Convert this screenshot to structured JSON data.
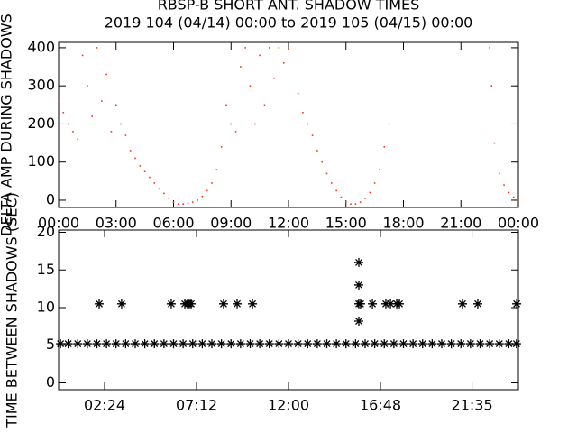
{
  "chart_data": [
    {
      "type": "scatter",
      "marker": "dot",
      "color": "#f03a1e",
      "title": "RBSP-B SHORT ANT. SHADOW TIMES",
      "subtitle": "2019 104 (04/14) 00:00 to 2019 105 (04/15) 00:00",
      "ylabel": "DELTA AMP DURING SHADOWS",
      "xlim": [
        0,
        24
      ],
      "ylim": [
        -19,
        414
      ],
      "xticks": [
        {
          "value": 0,
          "label": "00:00"
        },
        {
          "value": 3,
          "label": "03:00"
        },
        {
          "value": 6,
          "label": "06:00"
        },
        {
          "value": 9,
          "label": "09:00"
        },
        {
          "value": 12,
          "label": "12:00"
        },
        {
          "value": 15,
          "label": "15:00"
        },
        {
          "value": 18,
          "label": "18:00"
        },
        {
          "value": 21,
          "label": "21:00"
        },
        {
          "value": 24,
          "label": "00:00"
        }
      ],
      "yticks": [
        0,
        100,
        200,
        300,
        400
      ],
      "x": [
        0,
        0.25,
        0.5,
        0.75,
        1.0,
        1.25,
        1.5,
        1.75,
        2.0,
        2.25,
        2.5,
        2.75,
        3.0,
        3.25,
        3.5,
        3.75,
        4.0,
        4.25,
        4.5,
        4.75,
        5.0,
        5.25,
        5.5,
        5.75,
        6.0,
        6.25,
        6.5,
        6.75,
        7.0,
        7.25,
        7.5,
        7.75,
        8.0,
        8.25,
        8.5,
        8.75,
        9.0,
        9.25,
        9.5,
        9.75,
        10.0,
        10.25,
        10.5,
        10.75,
        11.0,
        11.25,
        11.5,
        11.75,
        12.0,
        12.5,
        12.75,
        13.0,
        13.25,
        13.5,
        13.75,
        14.0,
        14.25,
        14.5,
        14.75,
        15.0,
        15.25,
        15.5,
        15.75,
        16.0,
        16.25,
        16.5,
        16.75,
        17.0,
        17.25,
        22.5,
        22.6,
        22.75,
        23.0,
        23.25,
        23.5,
        23.75,
        24.0
      ],
      "values": [
        260,
        230,
        200,
        180,
        160,
        380,
        300,
        220,
        400,
        260,
        330,
        180,
        250,
        200,
        170,
        130,
        110,
        90,
        75,
        60,
        45,
        30,
        18,
        5,
        -5,
        -10,
        -10,
        -8,
        -5,
        0,
        10,
        25,
        45,
        80,
        140,
        250,
        200,
        180,
        350,
        400,
        300,
        200,
        380,
        250,
        400,
        320,
        400,
        360,
        400,
        280,
        230,
        200,
        170,
        130,
        100,
        70,
        45,
        25,
        8,
        -5,
        -10,
        -10,
        -5,
        5,
        20,
        45,
        80,
        140,
        200,
        400,
        300,
        150,
        70,
        40,
        20,
        8,
        0
      ]
    },
    {
      "type": "scatter",
      "marker": "asterisk",
      "color": "#000000",
      "ylabel": "TIME BETWEEN SHADOWS (SEC)",
      "xlim": [
        0,
        24
      ],
      "ylim": [
        -0.9,
        20.3
      ],
      "xticks": [
        {
          "value": 2.4,
          "label": "02:24"
        },
        {
          "value": 7.2,
          "label": "07:12"
        },
        {
          "value": 12,
          "label": "12:00"
        },
        {
          "value": 16.8,
          "label": "16:48"
        },
        {
          "value": 21.58,
          "label": "21:35"
        }
      ],
      "yticks": [
        0,
        5,
        10,
        15,
        20
      ],
      "x": [
        0.1,
        0.5,
        1,
        1.5,
        2,
        2.5,
        3,
        3.5,
        4,
        4.5,
        5,
        5.5,
        6,
        6.5,
        7,
        7.5,
        8,
        8.5,
        9,
        9.5,
        10,
        10.5,
        11,
        11.5,
        12,
        12.5,
        13,
        13.5,
        14,
        14.5,
        15,
        15.5,
        16,
        16.5,
        17,
        17.5,
        18,
        18.5,
        19,
        19.5,
        20,
        20.5,
        21,
        21.5,
        22,
        22.5,
        23,
        23.5,
        23.9,
        2.12,
        3.29,
        5.88,
        6.59,
        6.73,
        6.82,
        6.92,
        8.61,
        9.32,
        10.12,
        15.67,
        15.67,
        15.67,
        15.67,
        15.76,
        16.38,
        17.08,
        17.32,
        17.65,
        17.79,
        21.08,
        21.88,
        23.91
      ],
      "values": [
        5.2,
        5.2,
        5.2,
        5.2,
        5.2,
        5.2,
        5.2,
        5.2,
        5.2,
        5.2,
        5.2,
        5.2,
        5.2,
        5.2,
        5.2,
        5.2,
        5.2,
        5.2,
        5.2,
        5.2,
        5.2,
        5.2,
        5.2,
        5.2,
        5.2,
        5.2,
        5.2,
        5.2,
        5.2,
        5.2,
        5.2,
        5.2,
        5.2,
        5.2,
        5.2,
        5.2,
        5.2,
        5.2,
        5.2,
        5.2,
        5.2,
        5.2,
        5.2,
        5.2,
        5.2,
        5.2,
        5.2,
        5.2,
        5.2,
        10.5,
        10.5,
        10.5,
        10.5,
        10.5,
        10.5,
        10.5,
        10.5,
        10.5,
        10.5,
        10.5,
        16,
        13,
        8.2,
        10.5,
        10.5,
        10.5,
        10.5,
        10.5,
        10.5,
        10.5,
        10.5,
        10.5
      ]
    }
  ]
}
